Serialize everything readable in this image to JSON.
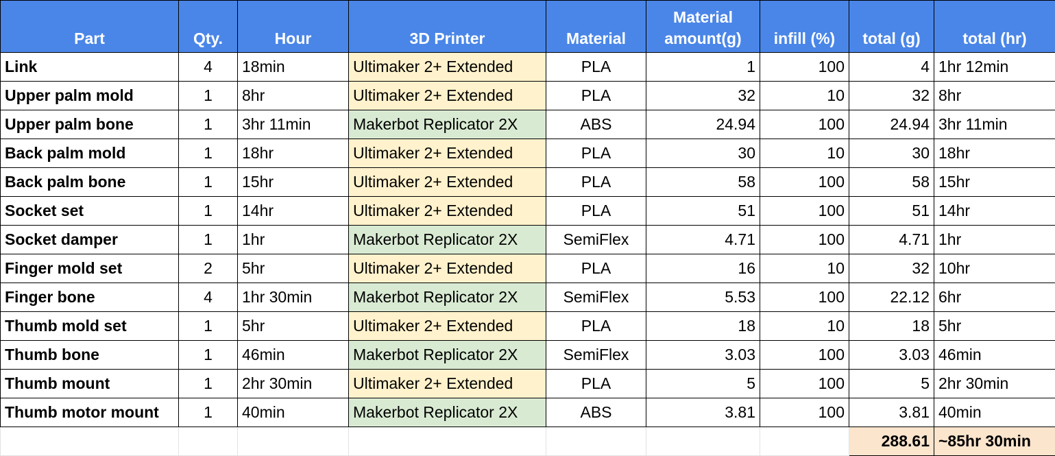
{
  "table": {
    "headers": [
      "Part",
      "Qty.",
      "Hour",
      "3D Printer",
      "Material",
      "Material amount(g)",
      "infill (%)",
      "total (g)",
      "total (hr)"
    ],
    "rows": [
      [
        "Link",
        4,
        "18min",
        "Ultimaker 2+ Extended",
        "PLA",
        1,
        100,
        4,
        "1hr 12min"
      ],
      [
        "Upper palm mold",
        1,
        "8hr",
        "Ultimaker 2+ Extended",
        "PLA",
        32,
        10,
        32,
        "8hr"
      ],
      [
        "Upper palm bone",
        1,
        "3hr 11min",
        "Makerbot Replicator 2X",
        "ABS",
        24.94,
        100,
        24.94,
        "3hr 11min"
      ],
      [
        "Back palm mold",
        1,
        "18hr",
        "Ultimaker 2+ Extended",
        "PLA",
        30,
        10,
        30,
        "18hr"
      ],
      [
        "Back palm bone",
        1,
        "15hr",
        "Ultimaker 2+ Extended",
        "PLA",
        58,
        100,
        58,
        "15hr"
      ],
      [
        "Socket set",
        1,
        "14hr",
        "Ultimaker 2+ Extended",
        "PLA",
        51,
        100,
        51,
        "14hr"
      ],
      [
        "Socket damper",
        1,
        "1hr",
        "Makerbot Replicator 2X",
        "SemiFlex",
        4.71,
        100,
        4.71,
        "1hr"
      ],
      [
        "Finger mold set",
        2,
        "5hr",
        "Ultimaker 2+ Extended",
        "PLA",
        16,
        10,
        32,
        "10hr"
      ],
      [
        "Finger bone",
        4,
        "1hr 30min",
        "Makerbot Replicator 2X",
        "SemiFlex",
        5.53,
        100,
        22.12,
        "6hr"
      ],
      [
        "Thumb mold set",
        1,
        "5hr",
        "Ultimaker 2+ Extended",
        "PLA",
        18,
        10,
        18,
        "5hr"
      ],
      [
        "Thumb bone",
        1,
        "46min",
        "Makerbot Replicator 2X",
        "SemiFlex",
        3.03,
        100,
        3.03,
        "46min"
      ],
      [
        "Thumb mount",
        1,
        "2hr 30min",
        "Ultimaker 2+ Extended",
        "PLA",
        5,
        100,
        5,
        "2hr 30min"
      ],
      [
        "Thumb motor mount",
        1,
        "40min",
        "Makerbot Replicator 2X",
        "ABS",
        3.81,
        100,
        3.81,
        "40min"
      ]
    ],
    "totals": {
      "grams": 288.61,
      "hours": "~85hr 30min"
    }
  }
}
